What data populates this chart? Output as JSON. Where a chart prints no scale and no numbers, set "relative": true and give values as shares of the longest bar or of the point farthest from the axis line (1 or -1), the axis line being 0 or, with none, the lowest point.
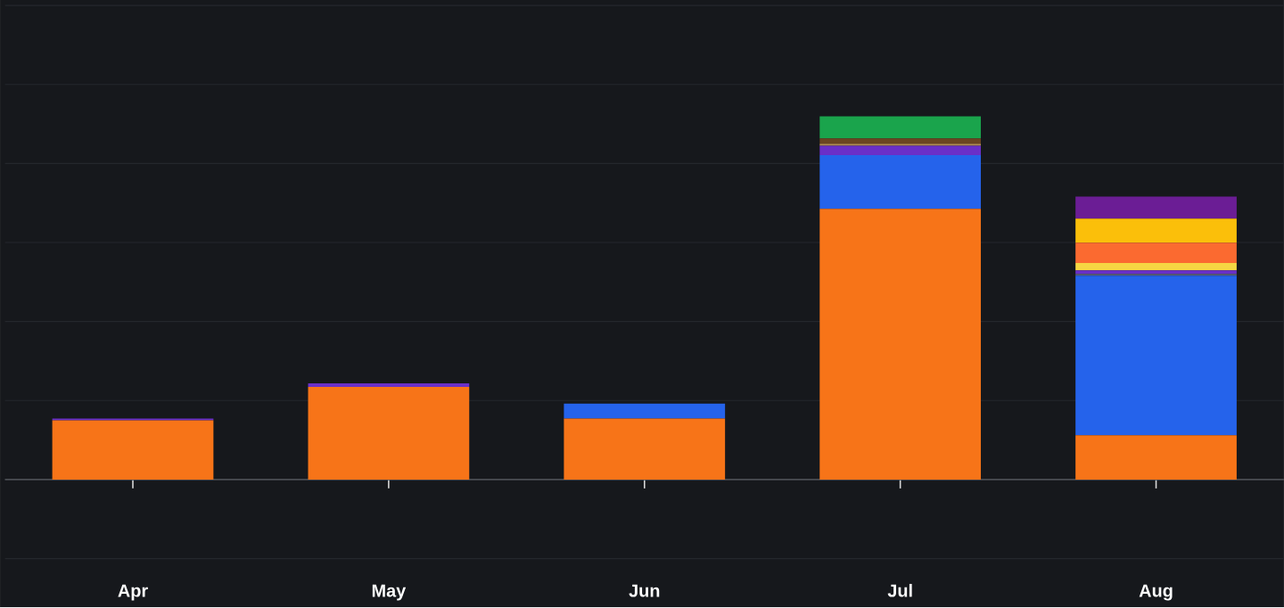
{
  "chart_data": {
    "type": "bar",
    "stacked": true,
    "relative": true,
    "grid": "y",
    "categories": [
      "Apr",
      "May",
      "Jun",
      "Jul",
      "Aug"
    ],
    "series": [
      {
        "color": "#f77418",
        "values": [
          0.163,
          0.255,
          0.168,
          0.745,
          0.122
        ]
      },
      {
        "color": "#2563eb",
        "values": [
          null,
          null,
          0.041,
          0.148,
          0.439
        ]
      },
      {
        "color": "#5a5f78",
        "values": [
          null,
          null,
          null,
          null,
          0.005
        ]
      },
      {
        "color": "#6a2fc8",
        "values": [
          0.005,
          0.01,
          null,
          0.026,
          0.01
        ]
      },
      {
        "color": "#f6d743",
        "values": [
          null,
          null,
          null,
          null,
          0.02
        ]
      },
      {
        "color": "#fb6a30",
        "values": [
          null,
          null,
          null,
          null,
          0.056
        ]
      },
      {
        "color": "#fbbf0a",
        "values": [
          null,
          null,
          null,
          null,
          0.066
        ]
      },
      {
        "color": "#6b1d95",
        "values": [
          null,
          null,
          null,
          null,
          0.061
        ]
      },
      {
        "color": "#b08a50",
        "values": [
          null,
          null,
          null,
          0.005,
          null
        ]
      },
      {
        "color": "#6b4521",
        "values": [
          null,
          null,
          null,
          0.015,
          null
        ]
      },
      {
        "color": "#1aa44c",
        "values": [
          null,
          null,
          null,
          0.061,
          null
        ]
      }
    ]
  }
}
